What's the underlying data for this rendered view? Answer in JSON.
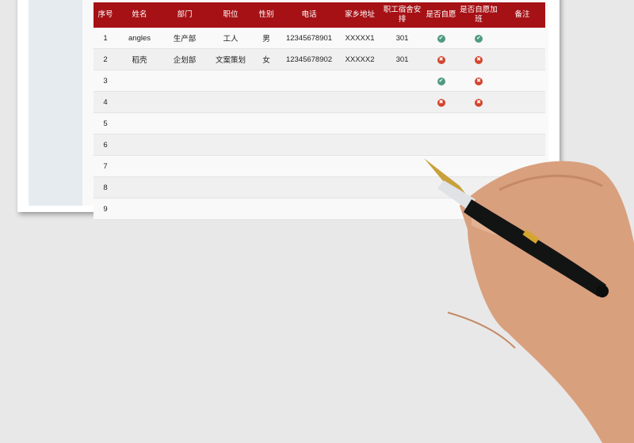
{
  "headers": [
    "序号",
    "姓名",
    "部门",
    "职位",
    "性别",
    "电话",
    "家乡地址",
    "职工宿舍安排",
    "是否自愿",
    "是否自愿加班",
    "备注"
  ],
  "rows": [
    {
      "no": "1",
      "name": "angles",
      "dept": "生产部",
      "pos": "工人",
      "sex": "男",
      "phone": "12345678901",
      "home": "XXXXX1",
      "dorm": "301",
      "voluntary": "check",
      "overtime": "check",
      "note": ""
    },
    {
      "no": "2",
      "name": "稻壳",
      "dept": "企划部",
      "pos": "文案策划",
      "sex": "女",
      "phone": "12345678902",
      "home": "XXXXX2",
      "dorm": "301",
      "voluntary": "cross",
      "overtime": "cross",
      "note": ""
    },
    {
      "no": "3",
      "name": "",
      "dept": "",
      "pos": "",
      "sex": "",
      "phone": "",
      "home": "",
      "dorm": "",
      "voluntary": "check",
      "overtime": "cross",
      "note": ""
    },
    {
      "no": "4",
      "name": "",
      "dept": "",
      "pos": "",
      "sex": "",
      "phone": "",
      "home": "",
      "dorm": "",
      "voluntary": "cross",
      "overtime": "cross",
      "note": ""
    },
    {
      "no": "5"
    },
    {
      "no": "6"
    },
    {
      "no": "7"
    },
    {
      "no": "8"
    },
    {
      "no": "9"
    }
  ],
  "colors": {
    "header": "#a51115",
    "check": "#4f9b80",
    "cross": "#d2452c"
  }
}
